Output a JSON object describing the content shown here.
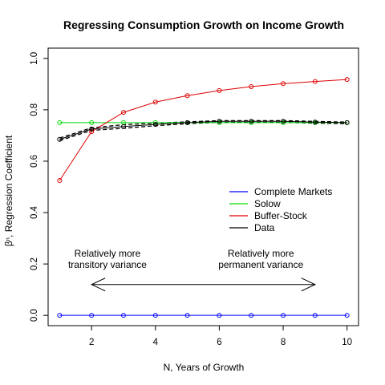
{
  "chart_data": {
    "type": "line",
    "title": "Regressing Consumption Growth on Income Growth",
    "xlabel": "N, Years of Growth",
    "ylabel": "βⁿ, Regression Coefficient",
    "xlim": [
      1,
      10
    ],
    "ylim": [
      0,
      1
    ],
    "x_ticks": [
      2,
      4,
      6,
      8,
      10
    ],
    "y_ticks": [
      0.0,
      0.2,
      0.4,
      0.6,
      0.8,
      1.0
    ],
    "y_tick_labels": [
      "0.0",
      "0.2",
      "0.4",
      "0.6",
      "0.8",
      "1.0"
    ],
    "x": [
      1,
      2,
      3,
      4,
      5,
      6,
      7,
      8,
      9,
      10
    ],
    "series": [
      {
        "name": "Complete Markets",
        "color": "#0000ff",
        "line": "solid",
        "marker": "circle-open",
        "values": [
          0.0,
          0.0,
          0.0,
          0.0,
          0.0,
          0.0,
          0.0,
          0.0,
          0.0,
          0.0
        ]
      },
      {
        "name": "Solow",
        "color": "#00dd00",
        "line": "solid",
        "marker": "circle-open",
        "values": [
          0.75,
          0.75,
          0.75,
          0.75,
          0.75,
          0.75,
          0.75,
          0.75,
          0.75,
          0.75
        ]
      },
      {
        "name": "Buffer-Stock",
        "color": "#dd0000",
        "line": "solid",
        "marker": "circle-open",
        "values": [
          0.525,
          0.715,
          0.79,
          0.83,
          0.855,
          0.875,
          0.89,
          0.902,
          0.91,
          0.918
        ]
      },
      {
        "name": "Data",
        "color": "#000000",
        "line": "solid",
        "marker": "circle-open",
        "values": [
          0.685,
          0.725,
          0.735,
          0.743,
          0.75,
          0.755,
          0.755,
          0.755,
          0.752,
          0.75
        ]
      }
    ],
    "data_band": {
      "color": "#000000",
      "line": "dashed",
      "upper": [
        0.69,
        0.73,
        0.742,
        0.748,
        0.753,
        0.758,
        0.758,
        0.758,
        0.755,
        0.752
      ],
      "lower": [
        0.68,
        0.72,
        0.728,
        0.738,
        0.746,
        0.751,
        0.751,
        0.751,
        0.748,
        0.746
      ]
    },
    "legend_position": "center-right",
    "annotations": {
      "left_line1": "Relatively more",
      "left_line2": "transitory variance",
      "right_line1": "Relatively more",
      "right_line2": "permanent variance",
      "arrow_from_x": 2,
      "arrow_to_x": 9,
      "arrow_y": 0.12
    },
    "grid": false
  }
}
